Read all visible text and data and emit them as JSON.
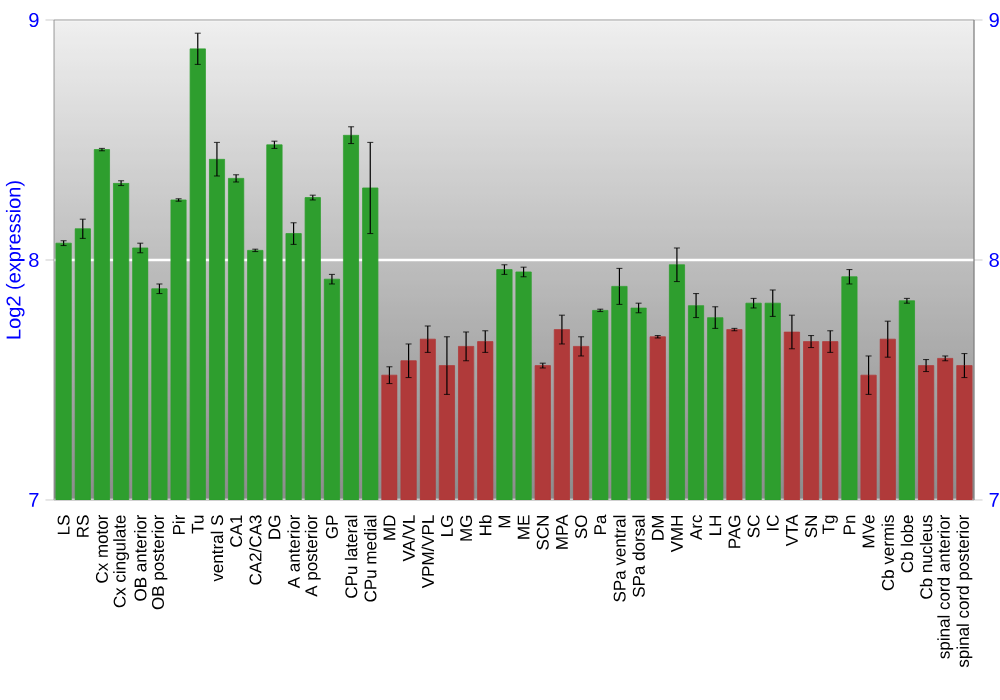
{
  "chart_data": {
    "type": "bar",
    "ylabel": "Log2 (expression)",
    "categories": [
      "LS",
      "RS",
      "Cx motor",
      "Cx cingulate",
      "OB anterior",
      "OB posterior",
      "Pir",
      "Tu",
      "ventral S",
      "CA1",
      "CA2/CA3",
      "DG",
      "A anterior",
      "A posterior",
      "GP",
      "CPu lateral",
      "CPu medial",
      "MD",
      "VA/VL",
      "VPM/VPL",
      "LG",
      "MG",
      "Hb",
      "M",
      "ME",
      "SCN",
      "MPA",
      "SO",
      "Pa",
      "SPa ventral",
      "SPa dorsal",
      "DM",
      "VMH",
      "Arc",
      "LH",
      "PAG",
      "SC",
      "IC",
      "VTA",
      "SN",
      "Tg",
      "Pn",
      "MVe",
      "Cb vermis",
      "Cb lobe",
      "Cb nucleus",
      "spinal cord anterior",
      "spinal cord posterior"
    ],
    "values": [
      8.07,
      8.13,
      8.46,
      8.32,
      8.05,
      7.88,
      8.25,
      8.88,
      8.42,
      8.34,
      8.04,
      8.48,
      8.11,
      8.26,
      7.92,
      8.52,
      8.3,
      7.52,
      7.58,
      7.67,
      7.56,
      7.64,
      7.66,
      7.96,
      7.95,
      7.56,
      7.71,
      7.64,
      7.79,
      7.89,
      7.8,
      7.68,
      7.98,
      7.81,
      7.76,
      7.71,
      7.82,
      7.82,
      7.7,
      7.66,
      7.66,
      7.93,
      7.52,
      7.67,
      7.83,
      7.56,
      7.59,
      7.56
    ],
    "errors": [
      0.01,
      0.04,
      0.005,
      0.01,
      0.02,
      0.02,
      0.005,
      0.065,
      0.07,
      0.015,
      0.005,
      0.015,
      0.045,
      0.01,
      0.02,
      0.035,
      0.19,
      0.035,
      0.07,
      0.055,
      0.12,
      0.06,
      0.045,
      0.02,
      0.02,
      0.01,
      0.06,
      0.04,
      0.005,
      0.075,
      0.02,
      0.005,
      0.07,
      0.05,
      0.045,
      0.005,
      0.02,
      0.055,
      0.07,
      0.025,
      0.045,
      0.03,
      0.08,
      0.075,
      0.01,
      0.025,
      0.01,
      0.05
    ],
    "colors": [
      "#2e9e2e",
      "#2e9e2e",
      "#2e9e2e",
      "#2e9e2e",
      "#2e9e2e",
      "#2e9e2e",
      "#2e9e2e",
      "#2e9e2e",
      "#2e9e2e",
      "#2e9e2e",
      "#2e9e2e",
      "#2e9e2e",
      "#2e9e2e",
      "#2e9e2e",
      "#2e9e2e",
      "#2e9e2e",
      "#2e9e2e",
      "#b03a3a",
      "#b03a3a",
      "#b03a3a",
      "#b03a3a",
      "#b03a3a",
      "#b03a3a",
      "#2e9e2e",
      "#2e9e2e",
      "#b03a3a",
      "#b03a3a",
      "#b03a3a",
      "#2e9e2e",
      "#2e9e2e",
      "#2e9e2e",
      "#b03a3a",
      "#2e9e2e",
      "#2e9e2e",
      "#2e9e2e",
      "#b03a3a",
      "#2e9e2e",
      "#2e9e2e",
      "#b03a3a",
      "#b03a3a",
      "#b03a3a",
      "#2e9e2e",
      "#b03a3a",
      "#b03a3a",
      "#2e9e2e",
      "#b03a3a",
      "#b03a3a",
      "#b03a3a"
    ],
    "ylim": [
      7,
      9
    ],
    "yticks": [
      7,
      8,
      9
    ],
    "y2lim": [
      7,
      9
    ],
    "y2ticks": [
      7,
      8,
      9
    ],
    "grid": "y"
  }
}
